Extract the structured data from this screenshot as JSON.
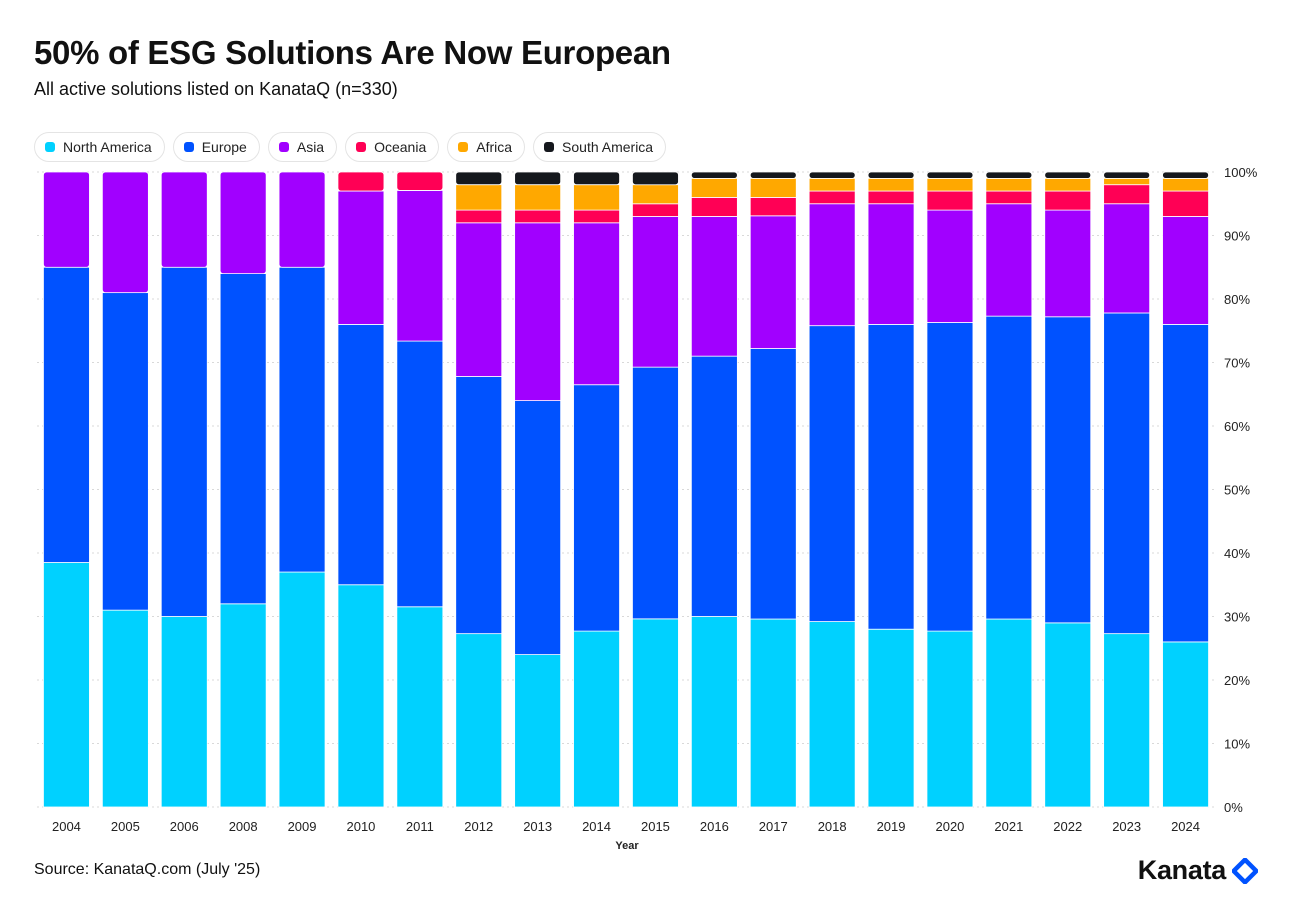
{
  "header": {
    "title": "50% of ESG Solutions Are Now European",
    "subtitle": "All active solutions listed on KanataQ (n=330)"
  },
  "footer": {
    "source": "Source: KanataQ.com (July '25)",
    "brand": "Kanata"
  },
  "icons": {
    "brand_mark": "kanata-diamond-icon"
  },
  "chart_data": {
    "type": "bar",
    "stacked": true,
    "normalized": true,
    "xlabel": "Year",
    "ylabel": "",
    "ylim": [
      0,
      100
    ],
    "y_axis_position": "right",
    "grid": true,
    "legend_position": "top-left",
    "categories": [
      "2004",
      "2005",
      "2006",
      "2008",
      "2009",
      "2010",
      "2011",
      "2012",
      "2013",
      "2014",
      "2015",
      "2016",
      "2017",
      "2018",
      "2019",
      "2020",
      "2021",
      "2022",
      "2023",
      "2024"
    ],
    "y_ticks": [
      "0%",
      "10%",
      "20%",
      "30%",
      "40%",
      "50%",
      "60%",
      "70%",
      "80%",
      "90%",
      "100%"
    ],
    "series": [
      {
        "name": "North America",
        "color": "#00D1FF",
        "values": [
          38.5,
          31,
          30,
          32,
          37,
          35,
          31.5,
          27.3,
          24,
          27.7,
          29.6,
          30,
          29.6,
          29.2,
          28,
          27.7,
          29.6,
          29,
          27.3,
          26
        ]
      },
      {
        "name": "Europe",
        "color": "#0052FF",
        "values": [
          46.5,
          50,
          55,
          52,
          48,
          41,
          41.8,
          40.5,
          40,
          38.8,
          39.6,
          41,
          42.6,
          46.6,
          48,
          48.6,
          47.7,
          48.2,
          50.5,
          50
        ]
      },
      {
        "name": "Asia",
        "color": "#A100FF",
        "values": [
          15,
          19,
          15,
          16,
          15,
          21,
          23.7,
          24.2,
          28,
          25.5,
          23.7,
          22,
          20.9,
          19.2,
          19,
          17.7,
          17.7,
          16.8,
          17.2,
          17
        ]
      },
      {
        "name": "Oceania",
        "color": "#FF0055",
        "values": [
          0,
          0,
          0,
          0,
          0,
          3,
          2.9,
          2,
          2,
          2,
          2,
          3,
          2.9,
          2,
          2,
          3,
          2,
          3,
          3,
          4
        ]
      },
      {
        "name": "Africa",
        "color": "#FFA800",
        "values": [
          0,
          0,
          0,
          0,
          0,
          0,
          0,
          4,
          4,
          4,
          3,
          3,
          3,
          2,
          2,
          2,
          2,
          2,
          1,
          2
        ]
      },
      {
        "name": "South America",
        "color": "#15181D",
        "values": [
          0,
          0,
          0,
          0,
          0,
          0,
          0,
          2,
          2,
          2,
          2,
          1,
          1,
          1,
          1,
          1,
          1,
          1,
          1,
          1
        ]
      }
    ]
  }
}
